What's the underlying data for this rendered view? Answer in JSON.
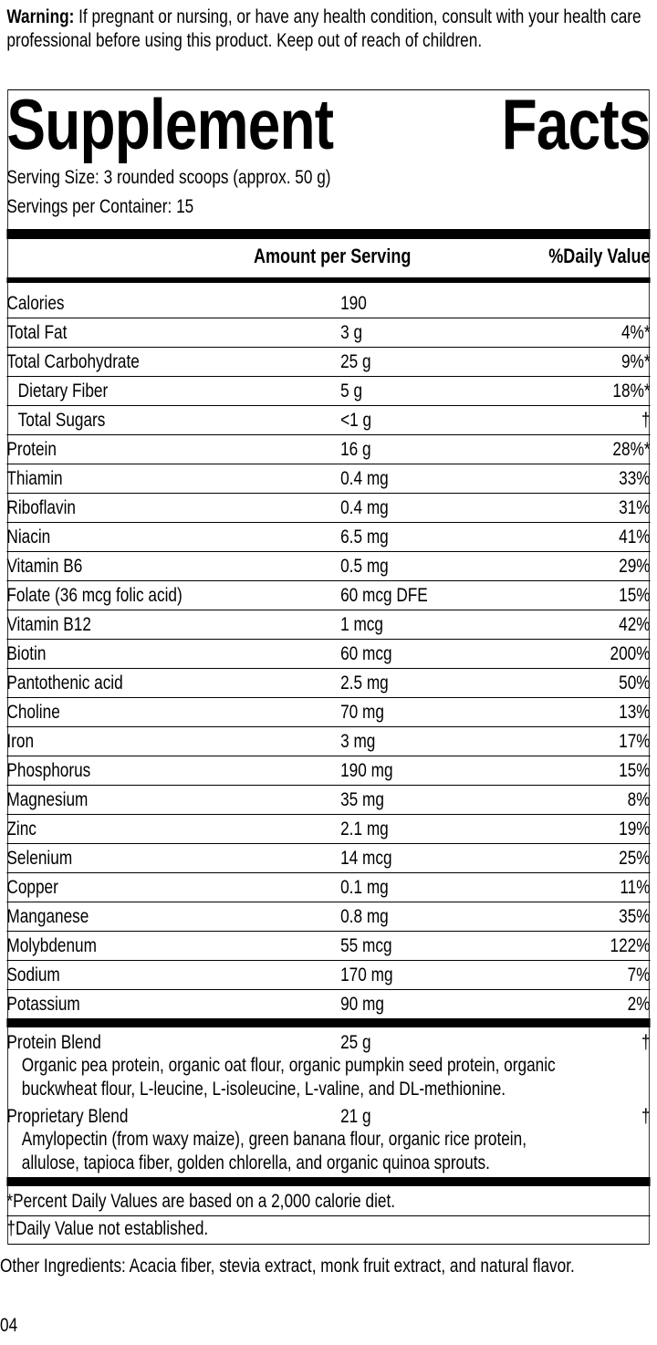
{
  "warning": {
    "label": "Warning:",
    "text": " If pregnant or nursing, or have any health condition, consult with your health care professional before using this product. Keep out of reach of children."
  },
  "title": {
    "word1": "Supplement",
    "word2": "Facts"
  },
  "serving_size": "Serving Size: 3 rounded scoops (approx. 50 g)",
  "servings_per_container": "Servings per Container: 15",
  "columns": {
    "amount": "Amount per Serving",
    "dv": "%Daily Value"
  },
  "nutrients": [
    {
      "name": "Calories",
      "amount": "190",
      "dv": ""
    },
    {
      "name": "Total Fat",
      "amount": "3 g",
      "dv": "4%*"
    },
    {
      "name": "Total Carbohydrate",
      "amount": "25 g",
      "dv": "9%*"
    },
    {
      "name": "Dietary Fiber",
      "amount": "5 g",
      "dv": "18%*",
      "indent": true
    },
    {
      "name": "Total Sugars",
      "amount": "<1 g",
      "dv": "†",
      "indent": true
    },
    {
      "name": "Protein",
      "amount": "16 g",
      "dv": "28%*"
    },
    {
      "name": "Thiamin",
      "amount": "0.4 mg",
      "dv": "33%"
    },
    {
      "name": "Riboflavin",
      "amount": "0.4 mg",
      "dv": "31%"
    },
    {
      "name": "Niacin",
      "amount": "6.5 mg",
      "dv": "41%"
    },
    {
      "name": "Vitamin B6",
      "amount": "0.5 mg",
      "dv": "29%"
    },
    {
      "name": "Folate (36 mcg folic acid)",
      "amount": "60 mcg DFE",
      "dv": "15%"
    },
    {
      "name": "Vitamin B12",
      "amount": "1 mcg",
      "dv": "42%"
    },
    {
      "name": "Biotin",
      "amount": "60 mcg",
      "dv": "200%"
    },
    {
      "name": "Pantothenic acid",
      "amount": "2.5 mg",
      "dv": "50%"
    },
    {
      "name": "Choline",
      "amount": "70 mg",
      "dv": "13%"
    },
    {
      "name": "Iron",
      "amount": "3 mg",
      "dv": "17%"
    },
    {
      "name": "Phosphorus",
      "amount": "190 mg",
      "dv": "15%"
    },
    {
      "name": "Magnesium",
      "amount": "35 mg",
      "dv": "8%"
    },
    {
      "name": "Zinc",
      "amount": "2.1 mg",
      "dv": "19%"
    },
    {
      "name": "Selenium",
      "amount": "14 mcg",
      "dv": "25%"
    },
    {
      "name": "Copper",
      "amount": "0.1 mg",
      "dv": "11%"
    },
    {
      "name": "Manganese",
      "amount": "0.8 mg",
      "dv": "35%"
    },
    {
      "name": "Molybdenum",
      "amount": "55 mcg",
      "dv": "122%"
    },
    {
      "name": "Sodium",
      "amount": "170 mg",
      "dv": "7%"
    },
    {
      "name": "Potassium",
      "amount": "90 mg",
      "dv": "2%"
    }
  ],
  "blends": [
    {
      "name": "Protein Blend",
      "amount": "25 g",
      "dv": "†",
      "lines": [
        "Organic pea protein, organic oat flour, organic pumpkin seed protein, organic",
        "buckwheat flour, L-leucine, L-isoleucine, L-valine, and DL-methionine."
      ]
    },
    {
      "name": "Proprietary Blend",
      "amount": "21 g",
      "dv": "†",
      "lines": [
        "Amylopectin (from waxy maize), green banana flour, organic rice protein,",
        "allulose, tapioca fiber, golden chlorella, and organic quinoa sprouts."
      ]
    }
  ],
  "footnotes": [
    "*Percent Daily Values are based on a 2,000 calorie diet.",
    "†Daily Value not established."
  ],
  "other_ingredients": "Other Ingredients: Acacia fiber, stevia extract, monk fruit extract, and natural flavor.",
  "code": "04"
}
